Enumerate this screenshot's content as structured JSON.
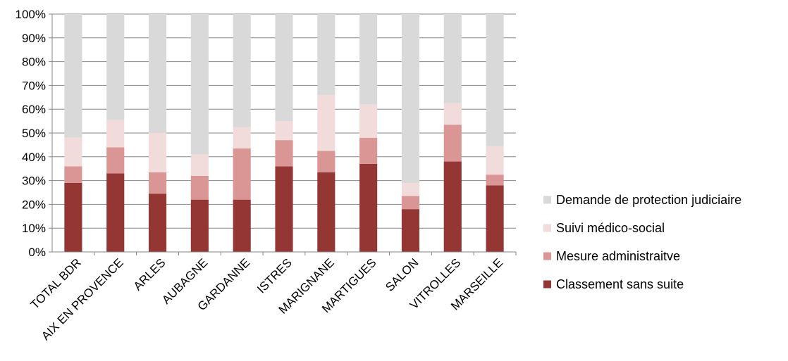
{
  "chart_data": {
    "type": "bar",
    "stacked": true,
    "percent_stacked": true,
    "categories": [
      "TOTAL BDR",
      "AIX EN PROVENCE",
      "ARLES",
      "AUBAGNE",
      "GARDANNE",
      "ISTRES",
      "MARIGNANE",
      "MARTIGUES",
      "SALON",
      "VITROLLES",
      "MARSEILLE"
    ],
    "series": [
      {
        "name": "Classement sans suite",
        "color": "#943634",
        "values": [
          29,
          33,
          24.5,
          22,
          22,
          36,
          33.5,
          37,
          18,
          38,
          28
        ]
      },
      {
        "name": "Mesure administraitve",
        "color": "#d99694",
        "values": [
          7,
          11,
          9,
          10,
          21.5,
          11,
          9,
          11,
          5.5,
          15.5,
          4.5
        ]
      },
      {
        "name": "Suivi médico-social",
        "color": "#f2dcdb",
        "values": [
          12,
          11.5,
          16.5,
          9,
          9,
          8,
          23.5,
          14,
          5.5,
          9,
          12
        ]
      },
      {
        "name": "Demande de protection judiciaire",
        "color": "#d9d9d9",
        "values": [
          52,
          44.5,
          50,
          59,
          47.5,
          45,
          34,
          38,
          71,
          37.5,
          55.5
        ]
      }
    ],
    "y_ticks": [
      "0%",
      "10%",
      "20%",
      "30%",
      "40%",
      "50%",
      "60%",
      "70%",
      "80%",
      "90%",
      "100%"
    ],
    "ylim": [
      0,
      100
    ],
    "grid": true,
    "legend_position": "right",
    "legend_order": [
      "Demande de protection judiciaire",
      "Suivi médico-social",
      "Mesure administraitve",
      "Classement sans suite"
    ],
    "title": "",
    "xlabel": "",
    "ylabel": ""
  }
}
